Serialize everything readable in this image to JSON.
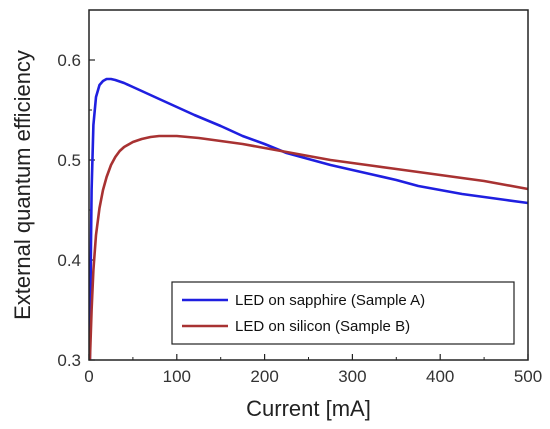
{
  "chart_data": {
    "type": "line",
    "xlabel": "Current [mA]",
    "ylabel": "External quantum efficiency",
    "xlim": [
      0,
      500
    ],
    "ylim": [
      0.3,
      0.65
    ],
    "xticks": [
      0,
      100,
      200,
      300,
      400,
      500
    ],
    "yticks": [
      0.3,
      0.4,
      0.5,
      0.6
    ],
    "ytick_labels": [
      "0.3",
      "0.4",
      "0.5",
      "0.6"
    ],
    "grid": false,
    "legend_position": "bottom-right",
    "series": [
      {
        "name": "LED on sapphire (Sample A)",
        "color": "#1f1fe0",
        "x": [
          1,
          2,
          3,
          5,
          8,
          12,
          16,
          20,
          25,
          30,
          40,
          50,
          60,
          80,
          100,
          120,
          150,
          175,
          200,
          225,
          250,
          275,
          300,
          325,
          350,
          375,
          400,
          425,
          450,
          475,
          500
        ],
        "y": [
          0.3,
          0.4,
          0.47,
          0.535,
          0.563,
          0.575,
          0.579,
          0.581,
          0.581,
          0.58,
          0.577,
          0.573,
          0.569,
          0.561,
          0.553,
          0.545,
          0.534,
          0.524,
          0.516,
          0.507,
          0.501,
          0.495,
          0.49,
          0.485,
          0.48,
          0.474,
          0.47,
          0.466,
          0.463,
          0.46,
          0.457
        ]
      },
      {
        "name": "LED on silicon (Sample B)",
        "color": "#a83232",
        "x": [
          1,
          3,
          5,
          8,
          12,
          16,
          20,
          25,
          30,
          35,
          40,
          50,
          60,
          70,
          80,
          100,
          125,
          150,
          175,
          200,
          225,
          250,
          275,
          300,
          325,
          350,
          375,
          400,
          425,
          450,
          475,
          500
        ],
        "y": [
          0.3,
          0.35,
          0.39,
          0.425,
          0.452,
          0.47,
          0.483,
          0.495,
          0.503,
          0.509,
          0.513,
          0.518,
          0.521,
          0.523,
          0.524,
          0.524,
          0.522,
          0.519,
          0.516,
          0.512,
          0.508,
          0.504,
          0.5,
          0.497,
          0.494,
          0.491,
          0.488,
          0.485,
          0.482,
          0.479,
          0.475,
          0.471
        ]
      }
    ]
  }
}
